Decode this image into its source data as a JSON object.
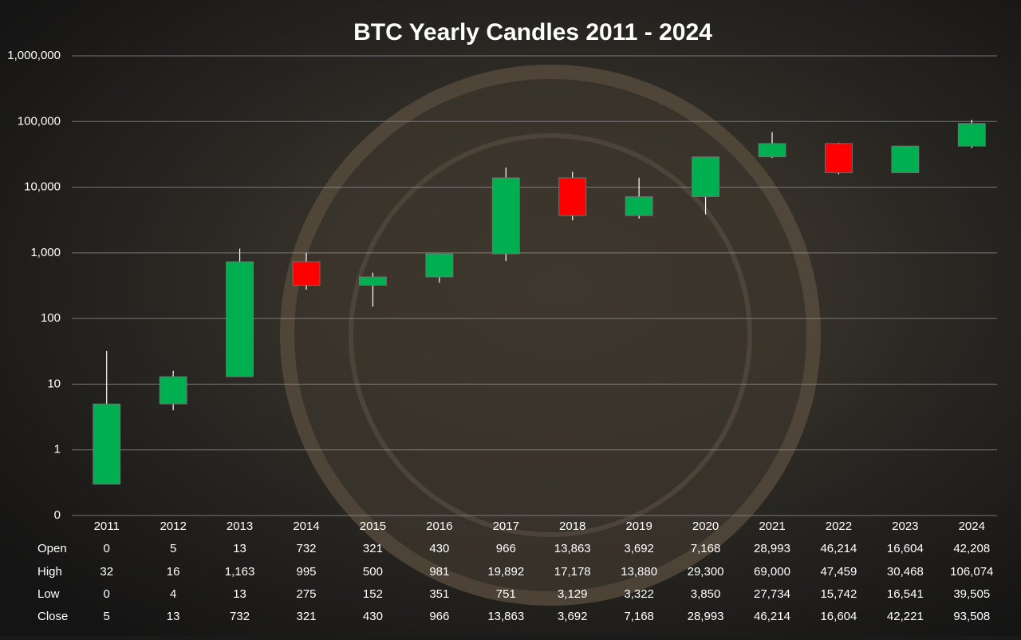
{
  "chart_data": {
    "type": "candlestick",
    "title": "BTC Yearly Candles 2011 - 2024",
    "categories": [
      "2011",
      "2012",
      "2013",
      "2014",
      "2015",
      "2016",
      "2017",
      "2018",
      "2019",
      "2020",
      "2021",
      "2022",
      "2023",
      "2024"
    ],
    "series": [
      {
        "name": "Open",
        "values": [
          0.3,
          5,
          13,
          732,
          321,
          430,
          966,
          13863,
          3692,
          7168,
          28993,
          46214,
          16604,
          42208
        ],
        "value_labels": [
          "0",
          "5",
          "13",
          "732",
          "321",
          "430",
          "966",
          "13,863",
          "3,692",
          "7,168",
          "28,993",
          "46,214",
          "16,604",
          "42,208"
        ]
      },
      {
        "name": "High",
        "values": [
          32,
          16,
          1163,
          995,
          500,
          981,
          19892,
          17178,
          13880,
          29300,
          69000,
          47459,
          30468,
          106074
        ],
        "value_labels": [
          "32",
          "16",
          "1,163",
          "995",
          "500",
          "981",
          "19,892",
          "17,178",
          "13,880",
          "29,300",
          "69,000",
          "47,459",
          "30,468",
          "106,074"
        ]
      },
      {
        "name": "Low",
        "values": [
          0.3,
          4,
          13,
          275,
          152,
          351,
          751,
          3129,
          3322,
          3850,
          27734,
          15742,
          16541,
          39505
        ],
        "value_labels": [
          "0",
          "4",
          "13",
          "275",
          "152",
          "351",
          "751",
          "3,129",
          "3,322",
          "3,850",
          "27,734",
          "15,742",
          "16,541",
          "39,505"
        ]
      },
      {
        "name": "Close",
        "values": [
          5,
          13,
          732,
          321,
          430,
          966,
          13863,
          3692,
          7168,
          28993,
          46214,
          16604,
          42221,
          93508
        ],
        "value_labels": [
          "5",
          "13",
          "732",
          "321",
          "430",
          "966",
          "13,863",
          "3,692",
          "7,168",
          "28,993",
          "46,214",
          "16,604",
          "42,221",
          "93,508"
        ]
      }
    ],
    "up_color": "#00b050",
    "down_color": "#ff0000",
    "log_scale": true,
    "grid": true,
    "ylim": [
      0.1,
      1000000
    ],
    "yticks": [
      {
        "value": 0.1,
        "label": "0"
      },
      1,
      10,
      100,
      {
        "value": 1000,
        "label": "1,000"
      },
      {
        "value": 10000,
        "label": "10,000"
      },
      {
        "value": 100000,
        "label": "100,000"
      },
      {
        "value": 1000000,
        "label": "1,000,000"
      }
    ]
  }
}
